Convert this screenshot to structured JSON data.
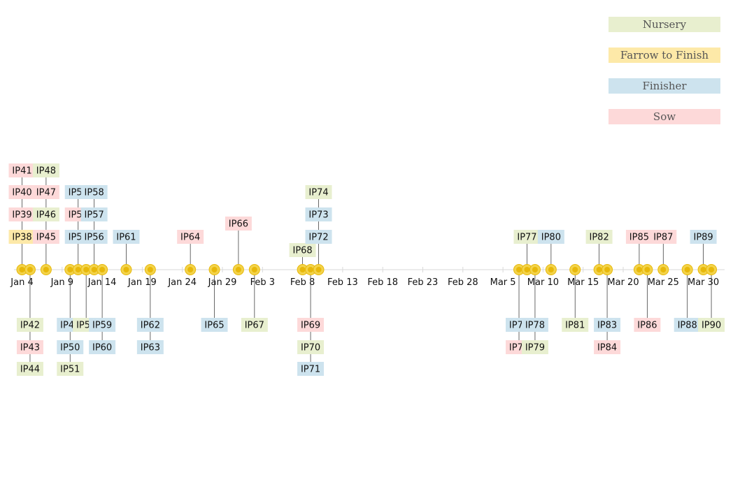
{
  "colors": {
    "Nursery": "#e8efcf",
    "Farrow to Finish": "#fde9a8",
    "Finisher": "#cde3ee",
    "Sow": "#fdd9d9",
    "marker_fill": "#e7b80b",
    "marker_ring": "#f3d34a",
    "axis": "#d9d9d9",
    "stem": "#444444"
  },
  "legend": [
    {
      "name": "Nursery"
    },
    {
      "name": "Farrow to Finish"
    },
    {
      "name": "Finisher"
    },
    {
      "name": "Sow"
    }
  ],
  "chart_data": {
    "type": "timeline",
    "x_range": [
      "2021-01-04",
      "2021-03-31"
    ],
    "ticks": [
      "Jan 4",
      "Jan 9",
      "Jan 14",
      "Jan 19",
      "Jan 24",
      "Jan 29",
      "Feb 3",
      "Feb 8",
      "Feb 13",
      "Feb 18",
      "Feb 23",
      "Feb 28",
      "Mar 5",
      "Mar 10",
      "Mar 15",
      "Mar 20",
      "Mar 25",
      "Mar 30"
    ],
    "events": [
      {
        "label": "IP38",
        "category": "Farrow to Finish",
        "date": "2021-01-04"
      },
      {
        "label": "IP39",
        "category": "Sow",
        "date": "2021-01-04"
      },
      {
        "label": "IP40",
        "category": "Sow",
        "date": "2021-01-04"
      },
      {
        "label": "IP41",
        "category": "Sow",
        "date": "2021-01-04"
      },
      {
        "label": "IP42",
        "category": "Nursery",
        "date": "2021-01-05"
      },
      {
        "label": "IP43",
        "category": "Sow",
        "date": "2021-01-05"
      },
      {
        "label": "IP44",
        "category": "Nursery",
        "date": "2021-01-05"
      },
      {
        "label": "IP45",
        "category": "Sow",
        "date": "2021-01-07"
      },
      {
        "label": "IP46",
        "category": "Nursery",
        "date": "2021-01-07"
      },
      {
        "label": "IP47",
        "category": "Sow",
        "date": "2021-01-07"
      },
      {
        "label": "IP48",
        "category": "Nursery",
        "date": "2021-01-07"
      },
      {
        "label": "IP49",
        "category": "Finisher",
        "date": "2021-01-10"
      },
      {
        "label": "IP50",
        "category": "Finisher",
        "date": "2021-01-10"
      },
      {
        "label": "IP51",
        "category": "Nursery",
        "date": "2021-01-10"
      },
      {
        "label": "IP52",
        "category": "Finisher",
        "date": "2021-01-11"
      },
      {
        "label": "IP53",
        "category": "Sow",
        "date": "2021-01-11"
      },
      {
        "label": "IP54",
        "category": "Finisher",
        "date": "2021-01-11"
      },
      {
        "label": "IP55",
        "category": "Nursery",
        "date": "2021-01-12"
      },
      {
        "label": "IP56",
        "category": "Finisher",
        "date": "2021-01-13"
      },
      {
        "label": "IP57",
        "category": "Finisher",
        "date": "2021-01-13"
      },
      {
        "label": "IP58",
        "category": "Finisher",
        "date": "2021-01-13"
      },
      {
        "label": "IP59",
        "category": "Finisher",
        "date": "2021-01-14"
      },
      {
        "label": "IP60",
        "category": "Finisher",
        "date": "2021-01-14"
      },
      {
        "label": "IP61",
        "category": "Finisher",
        "date": "2021-01-17"
      },
      {
        "label": "IP62",
        "category": "Finisher",
        "date": "2021-01-20"
      },
      {
        "label": "IP63",
        "category": "Finisher",
        "date": "2021-01-20"
      },
      {
        "label": "IP64",
        "category": "Sow",
        "date": "2021-01-25"
      },
      {
        "label": "IP65",
        "category": "Finisher",
        "date": "2021-01-28"
      },
      {
        "label": "IP66",
        "category": "Sow",
        "date": "2021-01-31"
      },
      {
        "label": "IP67",
        "category": "Nursery",
        "date": "2021-02-02"
      },
      {
        "label": "IP68",
        "category": "Nursery",
        "date": "2021-02-08"
      },
      {
        "label": "IP69",
        "category": "Sow",
        "date": "2021-02-09"
      },
      {
        "label": "IP70",
        "category": "Nursery",
        "date": "2021-02-09"
      },
      {
        "label": "IP71",
        "category": "Finisher",
        "date": "2021-02-09"
      },
      {
        "label": "IP72",
        "category": "Finisher",
        "date": "2021-02-10"
      },
      {
        "label": "IP73",
        "category": "Finisher",
        "date": "2021-02-10"
      },
      {
        "label": "IP74",
        "category": "Nursery",
        "date": "2021-02-10"
      },
      {
        "label": "IP75",
        "category": "Finisher",
        "date": "2021-03-07"
      },
      {
        "label": "IP76",
        "category": "Sow",
        "date": "2021-03-07"
      },
      {
        "label": "IP77",
        "category": "Nursery",
        "date": "2021-03-08"
      },
      {
        "label": "IP78",
        "category": "Finisher",
        "date": "2021-03-09"
      },
      {
        "label": "IP79",
        "category": "Nursery",
        "date": "2021-03-09"
      },
      {
        "label": "IP80",
        "category": "Finisher",
        "date": "2021-03-11"
      },
      {
        "label": "IP81",
        "category": "Nursery",
        "date": "2021-03-14"
      },
      {
        "label": "IP82",
        "category": "Nursery",
        "date": "2021-03-17"
      },
      {
        "label": "IP83",
        "category": "Finisher",
        "date": "2021-03-18"
      },
      {
        "label": "IP84",
        "category": "Sow",
        "date": "2021-03-18"
      },
      {
        "label": "IP85",
        "category": "Sow",
        "date": "2021-03-22"
      },
      {
        "label": "IP86",
        "category": "Sow",
        "date": "2021-03-23"
      },
      {
        "label": "IP87",
        "category": "Sow",
        "date": "2021-03-25"
      },
      {
        "label": "IP88",
        "category": "Finisher",
        "date": "2021-03-28"
      },
      {
        "label": "IP89",
        "category": "Finisher",
        "date": "2021-03-30"
      },
      {
        "label": "IP90",
        "category": "Nursery",
        "date": "2021-03-31"
      }
    ]
  }
}
